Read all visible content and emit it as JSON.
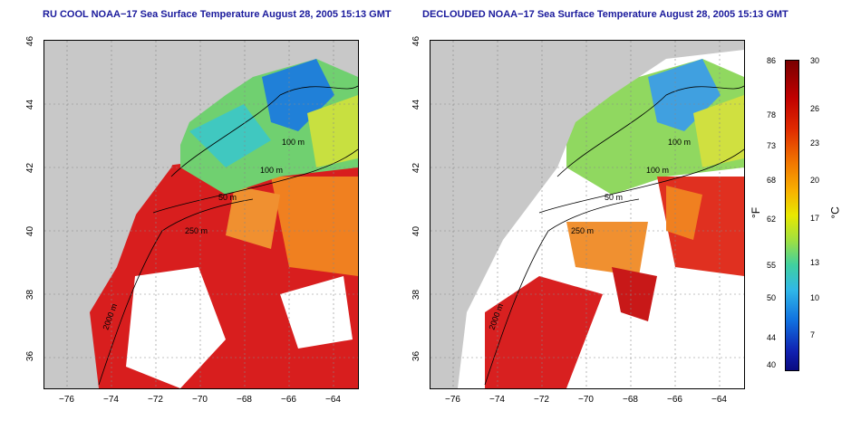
{
  "left_panel": {
    "title": "RU COOL NOAA−17 Sea Surface Temperature August 28, 2005 15:13 GMT"
  },
  "right_panel": {
    "title": "DECLOUDED NOAA−17 Sea Surface Temperature August 28, 2005 15:13 GMT"
  },
  "x_ticks": [
    "−76",
    "−74",
    "−72",
    "−70",
    "−68",
    "−66",
    "−64"
  ],
  "y_ticks": [
    "46",
    "44",
    "42",
    "40",
    "38",
    "36"
  ],
  "contour_labels": [
    "100 m",
    "100 m",
    "50 m",
    "250 m",
    "2000 m"
  ],
  "colorbar": {
    "fahrenheit": [
      "86",
      "78",
      "73",
      "68",
      "62",
      "55",
      "50",
      "44",
      "40"
    ],
    "celsius": [
      "30",
      "26",
      "23",
      "20",
      "17",
      "13",
      "10",
      "7"
    ],
    "f_unit": "°F",
    "c_unit": "°C"
  },
  "colors": {
    "land": "#c8c8c8",
    "title": "#1a1a9c"
  }
}
